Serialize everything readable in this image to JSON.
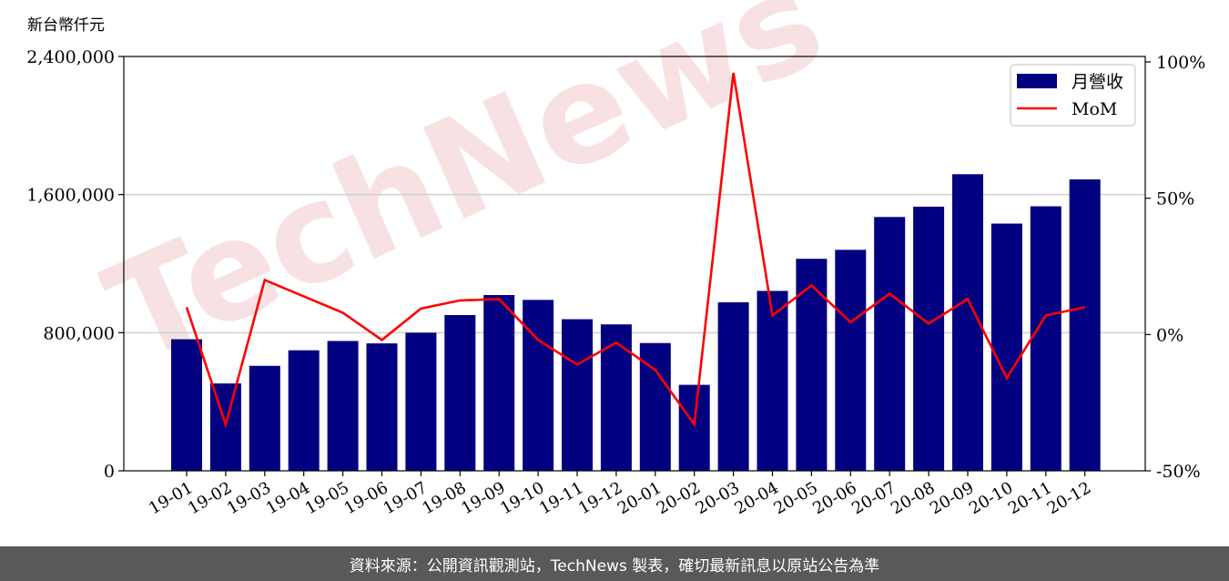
{
  "chart_data": {
    "type": "bar",
    "unit_label": "新台幣仟元",
    "categories": [
      "19-01",
      "19-02",
      "19-03",
      "19-04",
      "19-05",
      "19-06",
      "19-07",
      "19-08",
      "19-09",
      "19-10",
      "19-11",
      "19-12",
      "20-01",
      "20-02",
      "20-03",
      "20-04",
      "20-05",
      "20-06",
      "20-07",
      "20-08",
      "20-09",
      "20-10",
      "20-11",
      "20-12"
    ],
    "series": [
      {
        "name": "月營收",
        "type": "bar",
        "axis": "left",
        "color": "#000080",
        "values": [
          762000,
          506000,
          608000,
          698000,
          752000,
          738000,
          800000,
          902000,
          1018000,
          990000,
          878000,
          848000,
          740000,
          498000,
          976000,
          1042000,
          1228000,
          1280000,
          1470000,
          1530000,
          1718000,
          1432000,
          1532000,
          1688000
        ]
      },
      {
        "name": "MoM",
        "type": "line",
        "axis": "right",
        "color": "#ff0000",
        "values": [
          10,
          -33,
          20,
          14,
          8,
          -2,
          9.5,
          12.5,
          13,
          -2,
          -11,
          -3,
          -13,
          -33,
          96,
          7,
          18,
          4.5,
          15,
          4,
          13,
          -16,
          7,
          10
        ]
      }
    ],
    "y_left": {
      "min": 0,
      "max": 2400000,
      "ticks": [
        0,
        800000,
        1600000,
        2400000
      ],
      "tick_labels": [
        "0",
        "800,000",
        "1,600,000",
        "2,400,000"
      ]
    },
    "y_right": {
      "min": -50,
      "max": 102,
      "ticks": [
        -50,
        0,
        50,
        100
      ],
      "tick_labels": [
        "-50%",
        "0%",
        "50%",
        "100%"
      ]
    },
    "grid": "horizontal",
    "legend": "top-right",
    "watermark": "TechNews"
  },
  "footer": {
    "source": "資料來源：公開資訊觀測站，TechNews 製表，確切最新訊息以原站公告為準"
  }
}
